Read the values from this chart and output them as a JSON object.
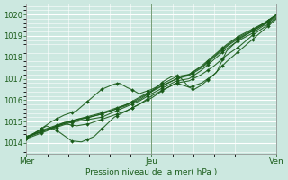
{
  "bg_color": "#cce8e0",
  "grid_major_color": "#ffffff",
  "grid_minor_color": "#e0f0ec",
  "line_color": "#1a5c1a",
  "marker_color": "#1a5c1a",
  "ylim": [
    1013.5,
    1020.5
  ],
  "yticks": [
    1014,
    1015,
    1016,
    1017,
    1018,
    1019,
    1020
  ],
  "xtick_labels": [
    "Mer",
    "Jeu",
    "Ven"
  ],
  "xtick_positions": [
    0.0,
    0.5,
    1.0
  ],
  "vline_positions": [
    0.5,
    1.0
  ],
  "xlabel": "Pression niveau de la mer( hPa )",
  "line_width": 0.8,
  "marker_size": 2.0
}
